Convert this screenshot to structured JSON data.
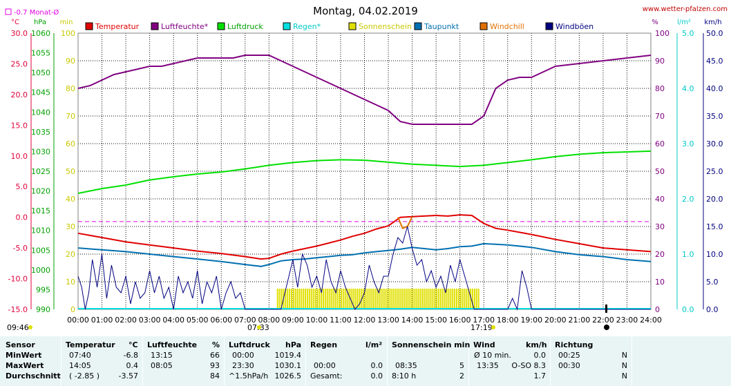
{
  "header": {
    "title": "Montag, 04.02.2019",
    "site": "www.wetter-pfalzen.com",
    "month_avg": "-0.7 Monat-Ø",
    "sunrise": "07:33",
    "sunset": "17:19",
    "now_time": "09:46"
  },
  "axis_units": {
    "temp": "°C",
    "pressure": "hPa",
    "minutes": "min",
    "percent": "%",
    "rain": "l/m²",
    "wind": "km/h"
  },
  "colors": {
    "temperature": "#e00000",
    "humidity": "#800080",
    "pressure": "#00e000",
    "rain": "#00e0e0",
    "sunshine": "#e0e000",
    "dewpoint": "#0070b0",
    "windchill": "#e07000",
    "gusts": "#000080",
    "month_avg": "#e000e0",
    "grid": "#000000",
    "panel": "#e9f5f5"
  },
  "chart_data": {
    "type": "line",
    "title": "Montag, 04.02.2019",
    "x_labels": [
      "00:00",
      "01:00",
      "02:00",
      "03:00",
      "04:00",
      "05:00",
      "06:00",
      "07:00",
      "08:00",
      "09:00",
      "10:00",
      "11:00",
      "12:00",
      "13:00",
      "14:00",
      "15:00",
      "16:00",
      "17:00",
      "18:00",
      "19:00",
      "20:00",
      "21:00",
      "22:00",
      "23:00",
      "24:00"
    ],
    "axes": {
      "temp_c": {
        "ticks": [
          "30.0",
          "25.0",
          "20.0",
          "15.0",
          "10.0",
          "5.0",
          "0.0",
          "-5.0",
          "-10.0",
          "-15.0"
        ],
        "range": [
          -15,
          30
        ]
      },
      "pressure_hpa": {
        "ticks": [
          "1060",
          "1055",
          "1050",
          "1045",
          "1040",
          "1035",
          "1030",
          "1025",
          "1020",
          "1015",
          "1010",
          "1005",
          "1000",
          "995",
          "990"
        ],
        "range": [
          990,
          1060
        ]
      },
      "sunshine_min": {
        "ticks": [
          "100",
          "90",
          "80",
          "70",
          "60",
          "50",
          "40",
          "30",
          "20",
          "10",
          "0"
        ],
        "range": [
          0,
          100
        ]
      },
      "humidity_pct": {
        "ticks": [
          "100",
          "90",
          "80",
          "70",
          "60",
          "50",
          "40",
          "30",
          "20",
          "10",
          "0"
        ],
        "range": [
          0,
          100
        ]
      },
      "rain_lm2": {
        "ticks": [
          "5.0",
          "4.0",
          "3.0",
          "2.0",
          "1.0",
          "0.0"
        ],
        "range": [
          0,
          5
        ]
      },
      "wind_kmh": {
        "ticks": [
          "50.0",
          "45.0",
          "40.0",
          "35.0",
          "30.0",
          "25.0",
          "20.0",
          "15.0",
          "10.0",
          "5.0",
          "0.0"
        ],
        "range": [
          0,
          50
        ]
      }
    },
    "legend": [
      "Temperatur",
      "Luftfeuchte*",
      "Luftdruck",
      "Regen*",
      "Sonnenschein",
      "Taupunkt",
      "Windchill",
      "Windböen"
    ],
    "month_avg_c": -0.7,
    "series": [
      {
        "name": "Temperatur",
        "axis": "temp_c",
        "x": [
          0,
          1,
          2,
          3,
          4,
          5,
          6,
          7,
          7.67,
          8,
          8.5,
          9,
          9.5,
          10,
          10.5,
          11,
          11.5,
          12,
          12.5,
          13,
          13.5,
          14,
          14.5,
          15,
          15.5,
          16,
          16.5,
          17,
          17.5,
          18,
          19,
          20,
          21,
          22,
          23,
          24
        ],
        "y": [
          -2.6,
          -3.3,
          -4.0,
          -4.5,
          -5.0,
          -5.5,
          -5.9,
          -6.4,
          -6.8,
          -6.7,
          -6.0,
          -5.5,
          -5.1,
          -4.7,
          -4.2,
          -3.7,
          -3.1,
          -2.6,
          -1.9,
          -1.4,
          0.0,
          0.1,
          0.2,
          0.3,
          0.2,
          0.4,
          0.3,
          -1.0,
          -1.8,
          -2.1,
          -2.8,
          -3.6,
          -4.3,
          -5.0,
          -5.3,
          -5.6
        ]
      },
      {
        "name": "Luftfeuchte*",
        "axis": "humidity_pct",
        "x": [
          0,
          0.5,
          1,
          1.5,
          2,
          2.5,
          3,
          3.5,
          4,
          4.5,
          5,
          5.5,
          6,
          6.5,
          7,
          7.5,
          8,
          8.5,
          9,
          9.5,
          10,
          10.5,
          11,
          11.5,
          12,
          12.5,
          13,
          13.5,
          14,
          14.5,
          15,
          15.5,
          16,
          16.5,
          17,
          17.5,
          18,
          18.5,
          19,
          19.5,
          20,
          21,
          22,
          23,
          24
        ],
        "y": [
          80,
          81,
          83,
          85,
          86,
          87,
          88,
          88,
          89,
          90,
          91,
          91,
          91,
          91,
          92,
          92,
          92,
          90,
          88,
          86,
          84,
          82,
          80,
          78,
          76,
          74,
          72,
          68,
          67,
          67,
          67,
          67,
          67,
          67,
          70,
          80,
          83,
          84,
          84,
          86,
          88,
          89,
          90,
          91,
          92
        ]
      },
      {
        "name": "Luftdruck",
        "axis": "pressure_hpa",
        "x": [
          0,
          1,
          2,
          3,
          4,
          5,
          6,
          7,
          8,
          9,
          10,
          11,
          12,
          13,
          14,
          15,
          16,
          17,
          18,
          19,
          20,
          21,
          22,
          23,
          24
        ],
        "y": [
          1019.4,
          1020.6,
          1021.5,
          1022.8,
          1023.6,
          1024.3,
          1024.8,
          1025.6,
          1026.5,
          1027.2,
          1027.7,
          1027.9,
          1027.8,
          1027.3,
          1026.8,
          1026.5,
          1026.2,
          1026.5,
          1027.2,
          1027.9,
          1028.7,
          1029.3,
          1029.7,
          1029.9,
          1030.1
        ]
      },
      {
        "name": "Taupunkt",
        "axis": "temp_c",
        "x": [
          0,
          1,
          2,
          3,
          4,
          5,
          6,
          7,
          7.67,
          8,
          8.5,
          9,
          9.5,
          10,
          10.5,
          11,
          11.5,
          12,
          12.5,
          13,
          13.5,
          14,
          14.5,
          15,
          15.5,
          16,
          16.5,
          17,
          17.5,
          18,
          19,
          20,
          21,
          22,
          23,
          24
        ],
        "y": [
          -5.0,
          -5.3,
          -5.6,
          -6.0,
          -6.4,
          -6.8,
          -7.2,
          -7.7,
          -8.0,
          -7.7,
          -7.1,
          -6.9,
          -6.8,
          -6.6,
          -6.4,
          -6.2,
          -6.1,
          -5.8,
          -5.6,
          -5.4,
          -5.2,
          -4.9,
          -5.1,
          -5.3,
          -5.1,
          -4.8,
          -4.7,
          -4.3,
          -4.4,
          -4.5,
          -4.9,
          -5.6,
          -6.1,
          -6.4,
          -6.9,
          -7.2
        ]
      },
      {
        "name": "Windchill",
        "axis": "temp_c",
        "x": [
          13.4,
          13.6,
          13.8,
          14.0
        ],
        "y": [
          0.0,
          -1.8,
          -1.5,
          0.1
        ]
      },
      {
        "name": "Windböen",
        "axis": "wind_kmh",
        "x": [
          0,
          0.15,
          0.3,
          0.45,
          0.6,
          0.8,
          1.0,
          1.2,
          1.4,
          1.6,
          1.8,
          2.0,
          2.2,
          2.4,
          2.6,
          2.8,
          3.0,
          3.2,
          3.4,
          3.6,
          3.8,
          4.0,
          4.2,
          4.4,
          4.6,
          4.8,
          5.0,
          5.2,
          5.4,
          5.6,
          5.8,
          6.0,
          6.2,
          6.4,
          6.6,
          6.8,
          7.0,
          7.3,
          8.0,
          8.5,
          9.0,
          9.2,
          9.4,
          9.6,
          9.8,
          10.0,
          10.2,
          10.4,
          10.6,
          10.8,
          11.0,
          11.2,
          11.4,
          11.6,
          11.8,
          12.0,
          12.2,
          12.4,
          12.6,
          12.8,
          13.0,
          13.2,
          13.4,
          13.6,
          13.8,
          14.0,
          14.2,
          14.4,
          14.6,
          14.8,
          15.0,
          15.2,
          15.4,
          15.6,
          15.8,
          16.0,
          16.2,
          16.4,
          16.6,
          16.8,
          17.0,
          17.2,
          17.4,
          17.6,
          17.8,
          18.0,
          18.2,
          18.4,
          18.6,
          18.8,
          19.0,
          19.2,
          20.0,
          24.0
        ],
        "y": [
          6,
          4,
          0,
          3,
          9,
          4,
          10,
          2,
          8,
          4,
          3,
          6,
          1,
          5,
          2,
          3,
          7,
          3,
          6,
          2,
          4,
          0,
          6,
          3,
          5,
          2,
          7,
          1,
          5,
          3,
          6,
          0,
          3,
          5,
          2,
          3,
          0,
          0,
          0,
          0,
          9,
          4,
          10,
          8,
          4,
          6,
          3,
          9,
          5,
          3,
          7,
          4,
          2,
          0,
          1,
          3,
          8,
          5,
          3,
          6,
          6,
          10,
          13,
          12,
          15,
          11,
          8,
          9,
          5,
          7,
          4,
          6,
          3,
          8,
          5,
          9,
          6,
          3,
          0,
          0,
          0,
          0,
          0,
          0,
          0,
          0,
          2,
          0,
          7,
          4,
          0,
          0,
          0,
          0
        ]
      }
    ],
    "sunshine_bars": {
      "start": 8.33,
      "end": 16.83,
      "value_min": 5
    }
  },
  "summary": {
    "headers": {
      "sensor": "Sensor",
      "temp": "Temperatur",
      "temp_unit": "°C",
      "hum": "Luftfeuchte",
      "hum_unit": "%",
      "press": "Luftdruck",
      "press_unit": "hPa",
      "rain": "Regen",
      "rain_unit": "l/m²",
      "sun": "Sonnenschein min",
      "wind": "Wind",
      "wind_unit": "km/h",
      "dir": "Richtung"
    },
    "rows": [
      {
        "label": "MinWert",
        "temp_time": "07:40",
        "temp_val": "-6.8",
        "hum_time": "13:15",
        "hum_val": "66",
        "press_time": "00:00",
        "press_val": "1019.4",
        "rain_time": "",
        "rain_val": "",
        "sun_time": "",
        "sun_val": "",
        "wind_time": "Ø 10 min.",
        "wind_val": "0.0",
        "dir_time": "00:25",
        "dir_val": "N"
      },
      {
        "label": "MaxWert",
        "temp_time": "14:05",
        "temp_val": "0.4",
        "hum_time": "08:05",
        "hum_val": "93",
        "press_time": "23:30",
        "press_val": "1030.1",
        "rain_time": "00:00",
        "rain_val": "0.0",
        "sun_time": "08:35",
        "sun_val": "5",
        "wind_time": "13:35",
        "wind_val": "O-SO 8.3",
        "dir_time": "00:30",
        "dir_val": "N"
      },
      {
        "label": "Durchschnitt",
        "temp_time": "( -2.85 )",
        "temp_val": "-3.57",
        "hum_time": "",
        "hum_val": "84",
        "press_time": "^1.5hPa/h",
        "press_val": "1026.5",
        "rain_time": "Gesamt:",
        "rain_val": "0.0",
        "sun_time": "8:10 h",
        "sun_val": "2",
        "wind_time": "",
        "wind_val": "1.7",
        "dir_time": "",
        "dir_val": "N"
      }
    ]
  }
}
